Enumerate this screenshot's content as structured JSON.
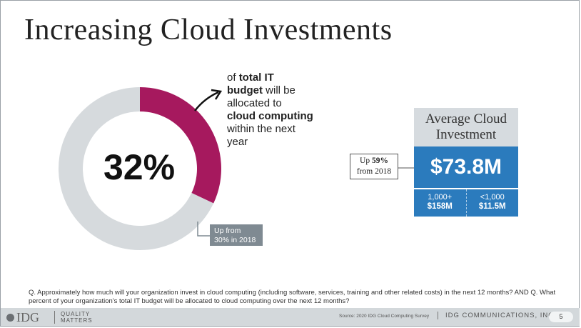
{
  "title": "Increasing Cloud Investments",
  "colors": {
    "primary_slice": "#a6195e",
    "remaining_slice": "#d6dadd",
    "accent_blue": "#2b7bbd"
  },
  "chart_data": [
    {
      "type": "pie",
      "values": [
        32,
        68
      ],
      "colors": [
        "#a6195e",
        "#d6dadd"
      ],
      "center_label": "32%"
    }
  ],
  "callout": {
    "of": "of ",
    "total_it": "total IT",
    "budget": "budget",
    "will_be": " will be",
    "allocated_to": "allocated to",
    "cloud_computing": "cloud computing",
    "within_next": "within the next",
    "year": "year"
  },
  "up_from": {
    "line1": "Up from",
    "line2": "30% in 2018"
  },
  "avg": {
    "title_line1": "Average Cloud",
    "title_line2": "Investment",
    "value": "$73.8M",
    "left_label": "1,000+",
    "left_value": "$158M",
    "right_label": "<1,000",
    "right_value": "$11.5M"
  },
  "up59": {
    "up": "Up ",
    "pct": "59%",
    "from": "from 2018"
  },
  "question": "Q. Approximately how much will your organization invest in cloud computing (including software, services, training and other related costs) in the next 12 months? AND Q. What percent of your organization's total IT budget will be allocated to cloud computing over the next 12 months?",
  "footer": {
    "logo": "IDG",
    "tagline1": "QUALITY",
    "tagline2": "MATTERS",
    "source": "Source: 2020 IDG Cloud Computing Survey",
    "company": "IDG COMMUNICATIONS, INC.",
    "page": "5"
  }
}
